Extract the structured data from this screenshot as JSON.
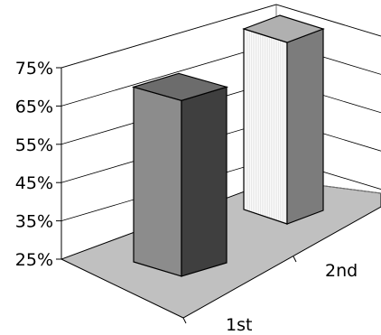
{
  "chart_data": {
    "type": "bar",
    "style": "3d-column",
    "categories": [
      "1st",
      "2nd"
    ],
    "values": [
      73.5,
      75
    ],
    "y_ticks": [
      "25%",
      "35%",
      "45%",
      "55%",
      "65%",
      "75%"
    ],
    "ylim": [
      25,
      75
    ],
    "grid": true,
    "legend": "none",
    "colors": {
      "floor": "#c0c0c0",
      "bar1_front": "#8c8c8c",
      "bar1_side": "#3f3f3f",
      "bar1_top": "#6c6c6c",
      "bar2_front": "#f4f4f4",
      "bar2_side": "#7c7c7c",
      "bar2_top": "#b0b0b0"
    }
  }
}
